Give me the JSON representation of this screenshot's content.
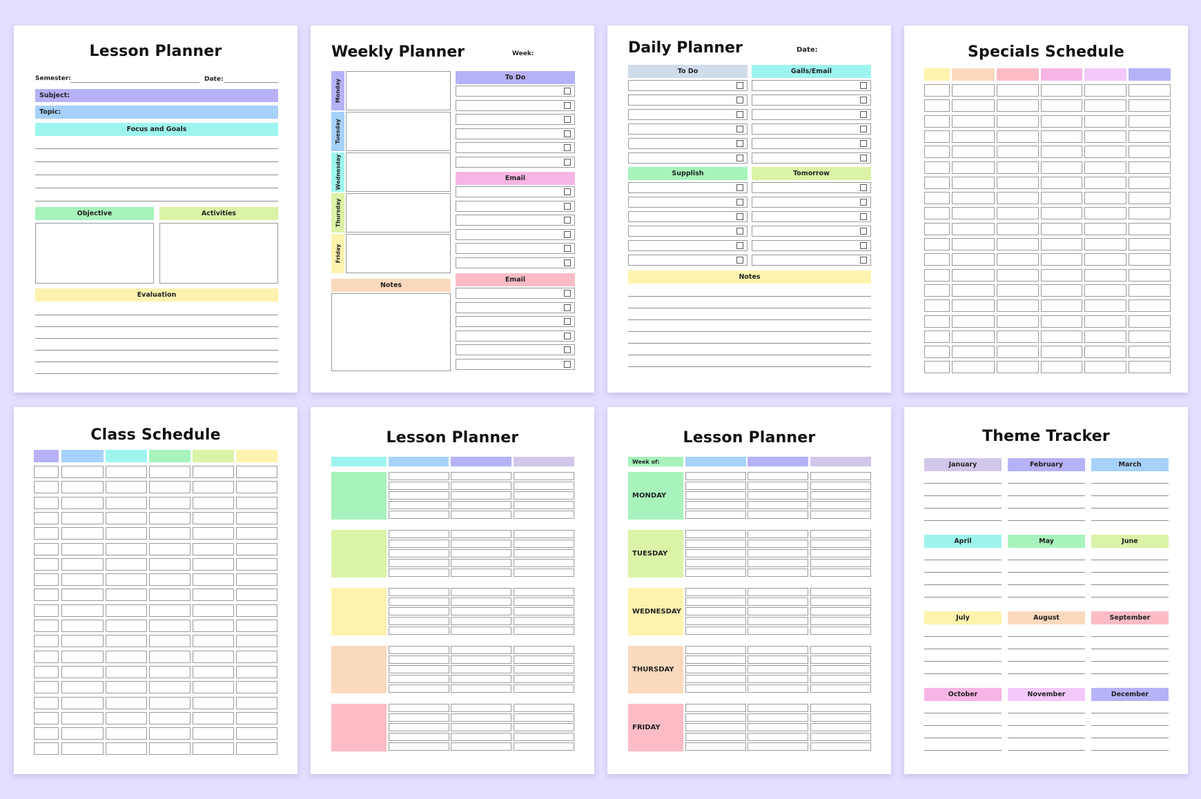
{
  "lesson_planner_1": {
    "title": "Lesson Planner",
    "semester_label": "Semester:",
    "date_label": "Date:",
    "subject_label": "Subject:",
    "topic_label": "Topic:",
    "focus_label": "Focus and Goals",
    "objective_label": "Objective",
    "activities_label": "Activities",
    "evaluation_label": "Evaluation"
  },
  "weekly_planner": {
    "title": "Weekly Planner",
    "week_label": "Week:",
    "days": [
      "Monday",
      "Tuesday",
      "Wednesday",
      "Thursday",
      "Friday"
    ],
    "notes_label": "Notes",
    "todo_label": "To Do",
    "email_label_1": "Email",
    "email_label_2": "Email"
  },
  "daily_planner": {
    "title": "Daily Planner",
    "date_label": "Date:",
    "todo_label": "To Do",
    "calls_label": "Galls/Email",
    "supplish_label": "Supplish",
    "tomorrow_label": "Tomorrow",
    "notes_label": "Notes"
  },
  "specials_schedule": {
    "title": "Specials Schedule"
  },
  "class_schedule": {
    "title": "Class Schedule"
  },
  "lesson_planner_2": {
    "title": "Lesson Planner"
  },
  "lesson_planner_3": {
    "title": "Lesson Planner",
    "week_of_label": "Week of:",
    "days": [
      "MONDAY",
      "TUESDAY",
      "WEDNESDAY",
      "THURSDAY",
      "FRIDAY"
    ]
  },
  "theme_tracker": {
    "title": "Theme Tracker",
    "months": [
      "January",
      "February",
      "March",
      "April",
      "May",
      "June",
      "July",
      "August",
      "September",
      "October",
      "November",
      "December"
    ]
  },
  "colors": {
    "background": "#e4deff",
    "purple": "#b5b2f7",
    "blue": "#a6d1fb",
    "cyan": "#9ef5ef",
    "mint": "#a7f3bb",
    "lime": "#dbf3a6",
    "yellow": "#fdf3ae",
    "peach": "#fbd9bd",
    "pink": "#fbbcc6",
    "magenta": "#f7b5e5",
    "lilac": "#f2c9f9",
    "lavender": "#d2c6ea"
  }
}
